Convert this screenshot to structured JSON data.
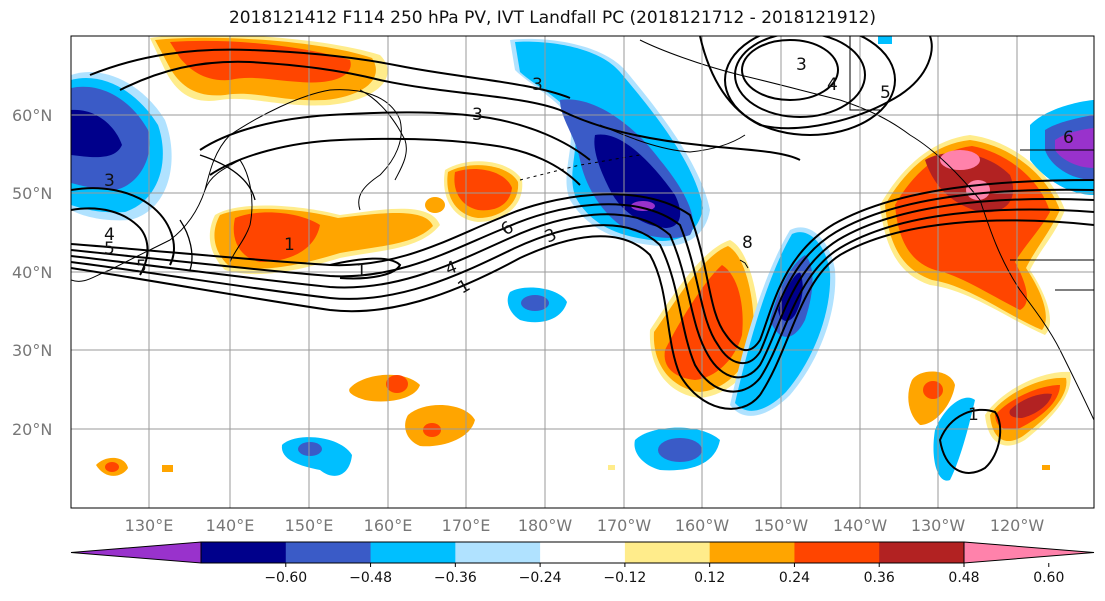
{
  "title": "2018121412 F114 250 hPa PV, IVT Landfall PC (2018121712 - 2018121912)",
  "lat_labels": [
    "20°N",
    "30°N",
    "40°N",
    "50°N",
    "60°N"
  ],
  "lon_labels": [
    "130°E",
    "140°E",
    "150°E",
    "160°E",
    "170°E",
    "180°W",
    "170°W",
    "160°W",
    "150°W",
    "140°W",
    "130°W",
    "120°W"
  ],
  "colorbar": {
    "tick_labels": [
      "−0.60",
      "−0.48",
      "−0.36",
      "−0.24",
      "−0.12",
      "0.12",
      "0.24",
      "0.36",
      "0.48",
      "0.60"
    ],
    "colors": [
      "#9932CC",
      "#00008B",
      "#3A5BC7",
      "#00BFFF",
      "#B0E2FF",
      "#FFFFFF",
      "#FFEC8B",
      "#FFA500",
      "#FF4500",
      "#B22222",
      "#FF82AB"
    ]
  },
  "contour_labels": [
    "1",
    "3",
    "4",
    "5",
    "6",
    "8"
  ]
}
